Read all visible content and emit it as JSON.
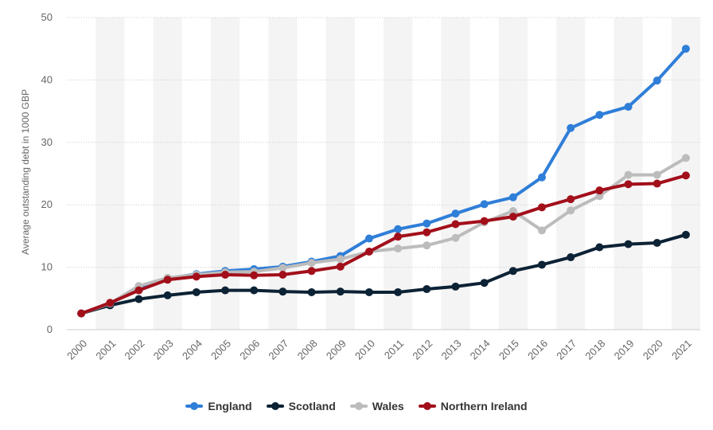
{
  "chart_data": {
    "type": "line",
    "title": "",
    "xlabel": "",
    "ylabel": "Average outstanding debt in 1000 GBP",
    "x": [
      "2000",
      "2001",
      "2002",
      "2003",
      "2004",
      "2005",
      "2006",
      "2007",
      "2008",
      "2009",
      "2010",
      "2011",
      "2012",
      "2013",
      "2014",
      "2015",
      "2016",
      "2017",
      "2018",
      "2019",
      "2020",
      "2021"
    ],
    "ylim": [
      0,
      50
    ],
    "yticks": [
      0,
      10,
      20,
      30,
      40,
      50
    ],
    "grid": true,
    "legend_position": "bottom",
    "series": [
      {
        "name": "England",
        "color": "#2f7ed8",
        "values": [
          2.6,
          4.2,
          6.8,
          8.2,
          8.9,
          9.4,
          9.7,
          10.1,
          10.9,
          11.8,
          14.6,
          16.1,
          17.0,
          18.6,
          20.1,
          21.2,
          24.4,
          32.3,
          34.4,
          35.7,
          39.9,
          45.0
        ]
      },
      {
        "name": "Scotland",
        "color": "#0c2235",
        "values": [
          2.6,
          3.9,
          4.9,
          5.5,
          6.0,
          6.3,
          6.3,
          6.1,
          6.0,
          6.1,
          6.0,
          6.0,
          6.5,
          6.9,
          7.5,
          9.4,
          10.4,
          11.6,
          13.2,
          13.7,
          13.9,
          15.2
        ]
      },
      {
        "name": "Wales",
        "color": "#bcbcbc",
        "values": [
          2.6,
          4.2,
          7.0,
          8.3,
          8.8,
          9.2,
          9.3,
          9.9,
          10.7,
          11.3,
          12.5,
          13.0,
          13.5,
          14.7,
          17.2,
          19.0,
          15.9,
          19.1,
          21.4,
          24.8,
          24.8,
          27.5
        ]
      },
      {
        "name": "Northern Ireland",
        "color": "#a20f1b",
        "values": [
          2.6,
          4.3,
          6.3,
          8.0,
          8.5,
          8.8,
          8.7,
          8.8,
          9.4,
          10.1,
          12.5,
          14.9,
          15.6,
          16.9,
          17.4,
          18.1,
          19.6,
          20.9,
          22.3,
          23.3,
          23.4,
          24.7
        ]
      }
    ]
  }
}
